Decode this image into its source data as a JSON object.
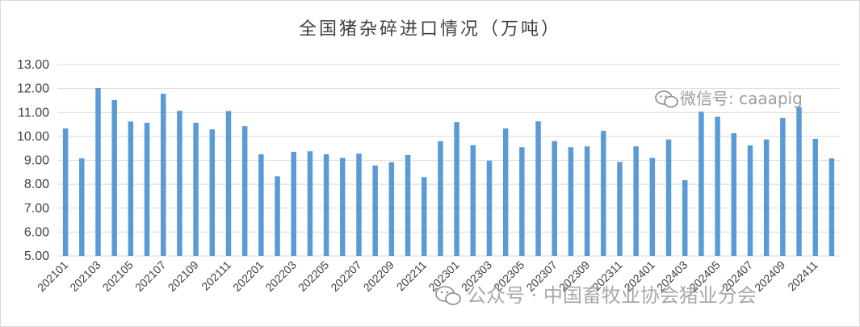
{
  "chart_data": {
    "type": "bar",
    "title": "全国猪杂碎进口情况（万吨）",
    "xlabel": "",
    "ylabel": "",
    "ylim": [
      5,
      13
    ],
    "yticks": [
      "5.00",
      "6.00",
      "7.00",
      "8.00",
      "9.00",
      "10.00",
      "11.00",
      "12.00",
      "13.00"
    ],
    "grid": true,
    "bar_color": "#5b9bd5",
    "categories": [
      "202101",
      "202102",
      "202103",
      "202104",
      "202105",
      "202106",
      "202107",
      "202108",
      "202109",
      "202110",
      "202111",
      "202112",
      "202201",
      "202202",
      "202203",
      "202204",
      "202205",
      "202206",
      "202207",
      "202208",
      "202209",
      "202210",
      "202211",
      "202212",
      "202301",
      "202302",
      "202303",
      "202304",
      "202305",
      "202306",
      "202307",
      "202308",
      "202309",
      "202310",
      "202311",
      "202312",
      "202401",
      "202402",
      "202403",
      "202404",
      "202405",
      "202406",
      "202407",
      "202408",
      "202409",
      "202410",
      "202411"
    ],
    "tick_labels": [
      "202101",
      "202103",
      "202105",
      "202107",
      "202109",
      "202111",
      "202201",
      "202203",
      "202205",
      "202207",
      "202209",
      "202211",
      "202301",
      "202303",
      "202305",
      "202307",
      "202309",
      "202311",
      "202401",
      "202403",
      "202405",
      "202407",
      "202409",
      "202411"
    ],
    "values": [
      10.33,
      9.08,
      12.02,
      11.52,
      10.62,
      10.57,
      11.78,
      11.07,
      10.57,
      10.29,
      11.06,
      10.43,
      9.25,
      8.33,
      9.35,
      9.38,
      9.25,
      9.1,
      9.28,
      8.78,
      8.92,
      9.22,
      8.3,
      9.8,
      10.6,
      9.63,
      8.98,
      10.33,
      9.55,
      10.63,
      9.8,
      9.55,
      9.58,
      10.23,
      8.93,
      9.58,
      9.1,
      9.87,
      8.17,
      11.03,
      10.82,
      10.13,
      9.62,
      9.87,
      10.77,
      11.22,
      9.9
    ],
    "extra_values": [
      9.08
    ]
  },
  "watermarks": {
    "wechat": "微信号: caaapig",
    "account": "公众号 · 中国畜牧业协会猪业分会"
  }
}
